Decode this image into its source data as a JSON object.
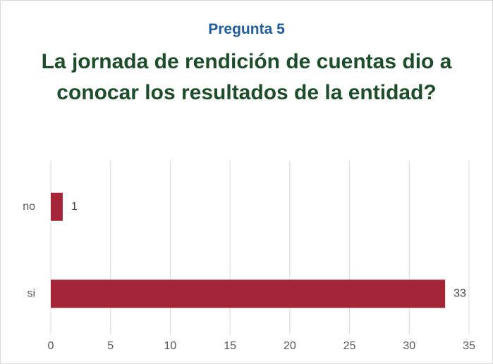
{
  "chart_data": {
    "type": "bar",
    "orientation": "horizontal",
    "title": "Pregunta 5",
    "subtitle": "La jornada de rendición de cuentas dio a conocar los resultados de la entidad?",
    "categories": [
      "no",
      "si"
    ],
    "values": [
      1,
      33
    ],
    "color": "#a52538",
    "xlim": [
      0,
      35
    ],
    "xticks": [
      0,
      5,
      10,
      15,
      20,
      25,
      30,
      35
    ],
    "grid": true
  }
}
